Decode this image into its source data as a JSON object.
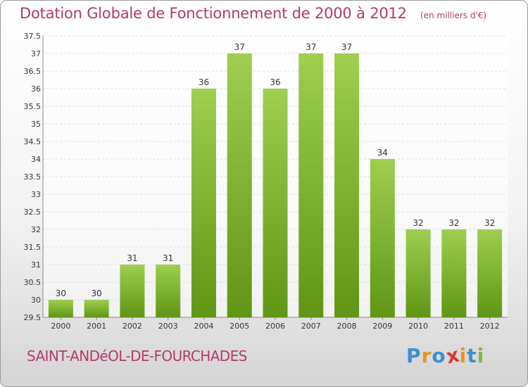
{
  "title": "Dotation Globale de Fonctionnement de 2000 à 2012",
  "subtitle": "(en milliers d'€)",
  "commune": "SAINT-ANDéOL-DE-FOURCHADES",
  "brand": {
    "letters": [
      "P",
      "r",
      "o",
      "x",
      "i",
      "t",
      "i"
    ],
    "colors": [
      "#3d8fd1",
      "#e8941f",
      "#3d8fd1",
      "#d83a3a",
      "#e8941f",
      "#3d8fd1",
      "#7fb843"
    ]
  },
  "colors": {
    "bar_top": "#9ecf4f",
    "bar_bottom": "#5f9614",
    "title": "#b23a6b",
    "text": "#333333",
    "grid": "#dddddd"
  },
  "chart_data": {
    "type": "bar",
    "categories": [
      "2000",
      "2001",
      "2002",
      "2003",
      "2004",
      "2005",
      "2006",
      "2007",
      "2008",
      "2009",
      "2010",
      "2011",
      "2012"
    ],
    "values": [
      30,
      30,
      31,
      31,
      36,
      37,
      36,
      37,
      37,
      34,
      32,
      32,
      32
    ],
    "data_labels": [
      "30",
      "30",
      "31",
      "31",
      "36",
      "37",
      "36",
      "37",
      "37",
      "34",
      "32",
      "32",
      "32"
    ],
    "ylim": [
      29.5,
      37.5
    ],
    "yticks": [
      "29.5",
      "30",
      "30.5",
      "31",
      "31.5",
      "32",
      "32.5",
      "33",
      "33.5",
      "34",
      "34.5",
      "35",
      "35.5",
      "36",
      "36.5",
      "37",
      "37.5"
    ],
    "grid": true,
    "legend": "none",
    "xlabel": "",
    "ylabel": ""
  }
}
